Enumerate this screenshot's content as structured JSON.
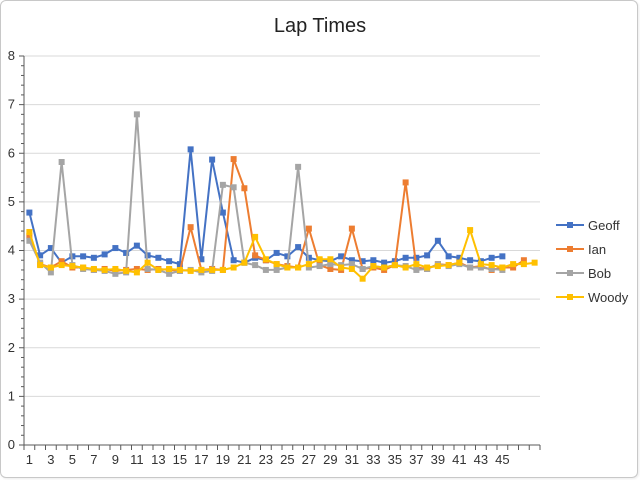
{
  "chart_data": {
    "type": "line",
    "title": "Lap Times",
    "xlabel": "",
    "ylabel": "",
    "ylim": [
      0,
      8
    ],
    "y_ticks": [
      0,
      1,
      2,
      3,
      4,
      5,
      6,
      7,
      8
    ],
    "x_range": [
      1,
      48
    ],
    "x_tick_labels": [
      1,
      3,
      5,
      7,
      9,
      11,
      13,
      15,
      17,
      19,
      21,
      23,
      25,
      27,
      29,
      31,
      33,
      35,
      37,
      39,
      41,
      43,
      45
    ],
    "grid": "horizontal",
    "legend": "right",
    "series": [
      {
        "name": "Geoff",
        "color": "#4472c4",
        "marker": "square",
        "x": [
          1,
          2,
          3,
          4,
          5,
          6,
          7,
          8,
          9,
          10,
          11,
          12,
          13,
          14,
          15,
          16,
          17,
          18,
          19,
          20,
          21,
          22,
          23,
          24,
          25,
          26,
          27,
          28,
          29,
          30,
          31,
          32,
          33,
          34,
          35,
          36,
          37,
          38,
          39,
          40,
          41,
          42,
          43,
          44,
          45
        ],
        "values": [
          4.78,
          3.9,
          4.05,
          3.75,
          3.88,
          3.88,
          3.85,
          3.92,
          4.05,
          3.95,
          4.1,
          3.9,
          3.85,
          3.78,
          3.72,
          6.08,
          3.82,
          5.87,
          4.78,
          3.8,
          3.75,
          3.85,
          3.8,
          3.95,
          3.88,
          4.07,
          3.85,
          3.8,
          3.78,
          3.88,
          3.8,
          3.78,
          3.8,
          3.75,
          3.78,
          3.85,
          3.85,
          3.9,
          4.2,
          3.88,
          3.85,
          3.8,
          3.78,
          3.85,
          3.88
        ]
      },
      {
        "name": "Ian",
        "color": "#ed7d31",
        "marker": "square",
        "x": [
          1,
          2,
          3,
          4,
          5,
          6,
          7,
          8,
          9,
          10,
          11,
          12,
          13,
          14,
          15,
          16,
          17,
          18,
          19,
          20,
          21,
          22,
          23,
          24,
          25,
          26,
          27,
          28,
          29,
          30,
          31,
          32,
          33,
          34,
          35,
          36,
          37,
          38,
          39,
          40,
          41,
          42,
          43,
          44,
          45,
          46,
          47
        ],
        "values": [
          4.3,
          3.72,
          3.65,
          3.78,
          3.65,
          3.65,
          3.6,
          3.62,
          3.58,
          3.6,
          3.62,
          3.6,
          3.62,
          3.6,
          3.58,
          4.48,
          3.6,
          3.62,
          3.6,
          5.88,
          5.28,
          3.9,
          3.8,
          3.72,
          3.68,
          3.65,
          4.45,
          3.7,
          3.62,
          3.6,
          4.45,
          3.62,
          3.65,
          3.6,
          3.7,
          5.4,
          3.65,
          3.62,
          3.72,
          3.7,
          3.75,
          3.65,
          3.68,
          3.6,
          3.65,
          3.65,
          3.8
        ]
      },
      {
        "name": "Bob",
        "color": "#a5a5a5",
        "marker": "square",
        "x": [
          1,
          2,
          3,
          4,
          5,
          6,
          7,
          8,
          9,
          10,
          11,
          12,
          13,
          14,
          15,
          16,
          17,
          18,
          19,
          20,
          21,
          22,
          23,
          24,
          25,
          26,
          27,
          28,
          29,
          30,
          31,
          32,
          33,
          34,
          35,
          36,
          37,
          38,
          39,
          40,
          41,
          42,
          43,
          44,
          45
        ],
        "values": [
          4.2,
          3.75,
          3.55,
          5.82,
          3.7,
          3.62,
          3.6,
          3.58,
          3.52,
          3.55,
          6.8,
          3.62,
          3.6,
          3.52,
          3.58,
          3.6,
          3.55,
          3.58,
          5.35,
          5.3,
          3.75,
          3.7,
          3.6,
          3.6,
          3.65,
          5.72,
          3.65,
          3.68,
          3.72,
          3.7,
          3.72,
          3.62,
          3.68,
          3.65,
          3.7,
          3.68,
          3.6,
          3.62,
          3.72,
          3.68,
          3.72,
          3.65,
          3.65,
          3.62,
          3.6
        ]
      },
      {
        "name": "Woody",
        "color": "#ffc000",
        "marker": "square",
        "x": [
          1,
          2,
          3,
          4,
          5,
          6,
          7,
          8,
          9,
          10,
          11,
          12,
          13,
          14,
          15,
          16,
          17,
          18,
          19,
          20,
          21,
          22,
          23,
          24,
          25,
          26,
          27,
          28,
          29,
          30,
          31,
          32,
          33,
          34,
          35,
          36,
          37,
          38,
          39,
          40,
          41,
          42,
          43,
          44,
          45,
          46,
          47,
          48
        ],
        "values": [
          4.38,
          3.7,
          3.65,
          3.7,
          3.68,
          3.65,
          3.62,
          3.6,
          3.62,
          3.58,
          3.55,
          3.75,
          3.6,
          3.62,
          3.6,
          3.58,
          3.6,
          3.6,
          3.6,
          3.65,
          3.75,
          4.28,
          3.82,
          3.72,
          3.65,
          3.65,
          3.72,
          3.82,
          3.82,
          3.65,
          3.62,
          3.42,
          3.68,
          3.65,
          3.7,
          3.65,
          3.72,
          3.65,
          3.68,
          3.7,
          3.75,
          4.42,
          3.72,
          3.7,
          3.65,
          3.72,
          3.72,
          3.75
        ]
      }
    ]
  }
}
